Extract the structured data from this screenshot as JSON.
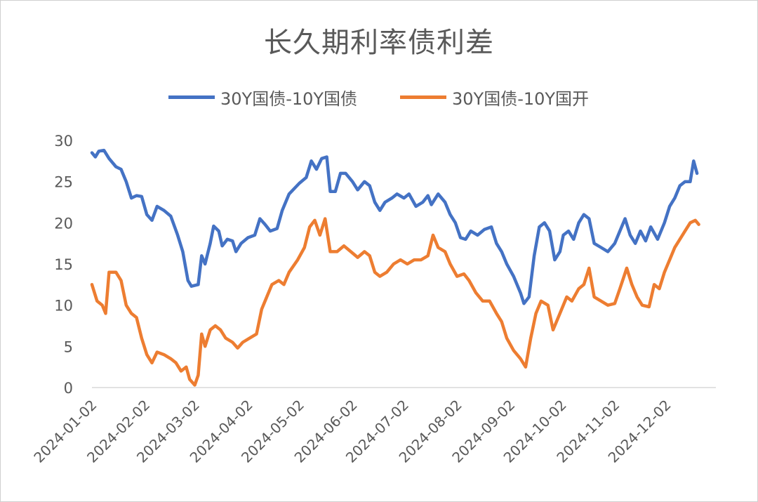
{
  "chart_data": {
    "type": "line",
    "title": "长久期利率债利差",
    "xlabel": "",
    "ylabel": "",
    "ylim": [
      0,
      30
    ],
    "yticks": [
      "0",
      "5",
      "10",
      "15",
      "20",
      "25",
      "30"
    ],
    "x_start": "2024-01-02",
    "x_end": "2024-12-31",
    "xticks": [
      "2024-01-02",
      "2024-02-02",
      "2024-03-02",
      "2024-04-02",
      "2024-05-02",
      "2024-06-02",
      "2024-07-02",
      "2024-08-02",
      "2024-09-02",
      "2024-10-02",
      "2024-11-02",
      "2024-12-02"
    ],
    "grid": false,
    "legend_position": "top",
    "series": [
      {
        "name": "30Y国债-10Y国债",
        "color": "#4472C4",
        "points": [
          [
            "2024-01-02",
            28.5
          ],
          [
            "2024-01-04",
            28.0
          ],
          [
            "2024-01-06",
            28.7
          ],
          [
            "2024-01-09",
            28.8
          ],
          [
            "2024-01-12",
            27.8
          ],
          [
            "2024-01-16",
            26.8
          ],
          [
            "2024-01-19",
            26.5
          ],
          [
            "2024-01-22",
            25.0
          ],
          [
            "2024-01-25",
            23.0
          ],
          [
            "2024-01-28",
            23.3
          ],
          [
            "2024-01-31",
            23.2
          ],
          [
            "2024-02-03",
            21.0
          ],
          [
            "2024-02-06",
            20.3
          ],
          [
            "2024-02-09",
            22.0
          ],
          [
            "2024-02-13",
            21.5
          ],
          [
            "2024-02-17",
            20.8
          ],
          [
            "2024-02-21",
            18.5
          ],
          [
            "2024-02-24",
            16.5
          ],
          [
            "2024-02-27",
            13.0
          ],
          [
            "2024-02-29",
            12.3
          ],
          [
            "2024-03-04",
            12.5
          ],
          [
            "2024-03-06",
            16.0
          ],
          [
            "2024-03-08",
            15.0
          ],
          [
            "2024-03-11",
            17.5
          ],
          [
            "2024-03-13",
            19.6
          ],
          [
            "2024-03-16",
            19.0
          ],
          [
            "2024-03-18",
            17.2
          ],
          [
            "2024-03-21",
            18.0
          ],
          [
            "2024-03-24",
            17.8
          ],
          [
            "2024-03-26",
            16.5
          ],
          [
            "2024-03-29",
            17.5
          ],
          [
            "2024-04-02",
            18.2
          ],
          [
            "2024-04-06",
            18.5
          ],
          [
            "2024-04-09",
            20.5
          ],
          [
            "2024-04-12",
            19.8
          ],
          [
            "2024-04-15",
            19.0
          ],
          [
            "2024-04-19",
            19.3
          ],
          [
            "2024-04-22",
            21.5
          ],
          [
            "2024-04-26",
            23.5
          ],
          [
            "2024-05-02",
            24.8
          ],
          [
            "2024-05-06",
            25.5
          ],
          [
            "2024-05-09",
            27.5
          ],
          [
            "2024-05-12",
            26.5
          ],
          [
            "2024-05-15",
            27.8
          ],
          [
            "2024-05-18",
            28.0
          ],
          [
            "2024-05-20",
            23.8
          ],
          [
            "2024-05-23",
            23.8
          ],
          [
            "2024-05-26",
            26.0
          ],
          [
            "2024-05-29",
            26.0
          ],
          [
            "2024-06-02",
            25.0
          ],
          [
            "2024-06-05",
            24.0
          ],
          [
            "2024-06-09",
            25.0
          ],
          [
            "2024-06-12",
            24.5
          ],
          [
            "2024-06-15",
            22.5
          ],
          [
            "2024-06-18",
            21.5
          ],
          [
            "2024-06-21",
            22.5
          ],
          [
            "2024-06-25",
            23.0
          ],
          [
            "2024-06-28",
            23.5
          ],
          [
            "2024-07-02",
            23.0
          ],
          [
            "2024-07-05",
            23.5
          ],
          [
            "2024-07-09",
            22.0
          ],
          [
            "2024-07-13",
            22.5
          ],
          [
            "2024-07-16",
            23.3
          ],
          [
            "2024-07-18",
            22.2
          ],
          [
            "2024-07-22",
            23.5
          ],
          [
            "2024-07-26",
            22.5
          ],
          [
            "2024-07-29",
            21.0
          ],
          [
            "2024-08-01",
            20.0
          ],
          [
            "2024-08-04",
            18.2
          ],
          [
            "2024-08-07",
            18.0
          ],
          [
            "2024-08-10",
            19.0
          ],
          [
            "2024-08-14",
            18.5
          ],
          [
            "2024-08-18",
            19.2
          ],
          [
            "2024-08-22",
            19.5
          ],
          [
            "2024-08-25",
            17.5
          ],
          [
            "2024-08-28",
            16.5
          ],
          [
            "2024-08-31",
            15.0
          ],
          [
            "2024-09-04",
            13.5
          ],
          [
            "2024-09-08",
            11.5
          ],
          [
            "2024-09-10",
            10.2
          ],
          [
            "2024-09-13",
            11.0
          ],
          [
            "2024-09-16",
            16.0
          ],
          [
            "2024-09-19",
            19.5
          ],
          [
            "2024-09-22",
            20.0
          ],
          [
            "2024-09-25",
            19.0
          ],
          [
            "2024-09-28",
            15.5
          ],
          [
            "2024-10-01",
            16.5
          ],
          [
            "2024-10-03",
            18.5
          ],
          [
            "2024-10-06",
            19.0
          ],
          [
            "2024-10-09",
            18.0
          ],
          [
            "2024-10-12",
            20.0
          ],
          [
            "2024-10-15",
            21.0
          ],
          [
            "2024-10-18",
            20.5
          ],
          [
            "2024-10-21",
            17.5
          ],
          [
            "2024-10-25",
            17.0
          ],
          [
            "2024-10-29",
            16.5
          ],
          [
            "2024-11-02",
            17.5
          ],
          [
            "2024-11-05",
            19.0
          ],
          [
            "2024-11-08",
            20.5
          ],
          [
            "2024-11-11",
            18.5
          ],
          [
            "2024-11-14",
            17.5
          ],
          [
            "2024-11-17",
            19.0
          ],
          [
            "2024-11-20",
            17.8
          ],
          [
            "2024-11-23",
            19.5
          ],
          [
            "2024-11-27",
            18.0
          ],
          [
            "2024-12-01",
            20.0
          ],
          [
            "2024-12-04",
            22.0
          ],
          [
            "2024-12-07",
            23.0
          ],
          [
            "2024-12-10",
            24.5
          ],
          [
            "2024-12-13",
            25.0
          ],
          [
            "2024-12-16",
            25.0
          ],
          [
            "2024-12-18",
            27.5
          ],
          [
            "2024-12-20",
            26.0
          ]
        ]
      },
      {
        "name": "30Y国债-10Y国开",
        "color": "#ED7D31",
        "points": [
          [
            "2024-01-02",
            12.5
          ],
          [
            "2024-01-05",
            10.5
          ],
          [
            "2024-01-08",
            10.0
          ],
          [
            "2024-01-10",
            9.0
          ],
          [
            "2024-01-12",
            14.0
          ],
          [
            "2024-01-16",
            14.0
          ],
          [
            "2024-01-19",
            13.0
          ],
          [
            "2024-01-22",
            10.0
          ],
          [
            "2024-01-25",
            9.0
          ],
          [
            "2024-01-28",
            8.5
          ],
          [
            "2024-01-31",
            6.0
          ],
          [
            "2024-02-03",
            4.0
          ],
          [
            "2024-02-06",
            3.0
          ],
          [
            "2024-02-09",
            4.3
          ],
          [
            "2024-02-13",
            4.0
          ],
          [
            "2024-02-17",
            3.5
          ],
          [
            "2024-02-20",
            3.0
          ],
          [
            "2024-02-23",
            2.0
          ],
          [
            "2024-02-26",
            2.5
          ],
          [
            "2024-02-28",
            1.0
          ],
          [
            "2024-03-02",
            0.3
          ],
          [
            "2024-03-04",
            1.5
          ],
          [
            "2024-03-06",
            6.5
          ],
          [
            "2024-03-08",
            5.0
          ],
          [
            "2024-03-11",
            7.0
          ],
          [
            "2024-03-14",
            7.5
          ],
          [
            "2024-03-17",
            7.0
          ],
          [
            "2024-03-20",
            6.0
          ],
          [
            "2024-03-24",
            5.5
          ],
          [
            "2024-03-27",
            4.8
          ],
          [
            "2024-03-30",
            5.5
          ],
          [
            "2024-04-03",
            6.0
          ],
          [
            "2024-04-07",
            6.5
          ],
          [
            "2024-04-10",
            9.5
          ],
          [
            "2024-04-13",
            11.0
          ],
          [
            "2024-04-16",
            12.5
          ],
          [
            "2024-04-20",
            13.0
          ],
          [
            "2024-04-23",
            12.5
          ],
          [
            "2024-04-26",
            14.0
          ],
          [
            "2024-05-01",
            15.5
          ],
          [
            "2024-05-05",
            17.0
          ],
          [
            "2024-05-08",
            19.5
          ],
          [
            "2024-05-11",
            20.3
          ],
          [
            "2024-05-14",
            18.5
          ],
          [
            "2024-05-17",
            20.5
          ],
          [
            "2024-05-20",
            16.5
          ],
          [
            "2024-05-24",
            16.5
          ],
          [
            "2024-05-28",
            17.2
          ],
          [
            "2024-06-01",
            16.5
          ],
          [
            "2024-06-05",
            15.8
          ],
          [
            "2024-06-09",
            16.5
          ],
          [
            "2024-06-12",
            16.0
          ],
          [
            "2024-06-15",
            14.0
          ],
          [
            "2024-06-18",
            13.5
          ],
          [
            "2024-06-22",
            14.0
          ],
          [
            "2024-06-26",
            15.0
          ],
          [
            "2024-06-30",
            15.5
          ],
          [
            "2024-07-04",
            15.0
          ],
          [
            "2024-07-08",
            15.5
          ],
          [
            "2024-07-12",
            15.5
          ],
          [
            "2024-07-16",
            16.0
          ],
          [
            "2024-07-19",
            18.5
          ],
          [
            "2024-07-22",
            17.0
          ],
          [
            "2024-07-26",
            16.5
          ],
          [
            "2024-07-29",
            15.0
          ],
          [
            "2024-08-02",
            13.5
          ],
          [
            "2024-08-06",
            13.8
          ],
          [
            "2024-08-09",
            13.0
          ],
          [
            "2024-08-13",
            11.5
          ],
          [
            "2024-08-17",
            10.5
          ],
          [
            "2024-08-21",
            10.5
          ],
          [
            "2024-08-25",
            9.0
          ],
          [
            "2024-08-28",
            8.0
          ],
          [
            "2024-08-31",
            6.0
          ],
          [
            "2024-09-04",
            4.5
          ],
          [
            "2024-09-08",
            3.5
          ],
          [
            "2024-09-11",
            2.5
          ],
          [
            "2024-09-14",
            6.0
          ],
          [
            "2024-09-17",
            9.0
          ],
          [
            "2024-09-20",
            10.5
          ],
          [
            "2024-09-24",
            10.0
          ],
          [
            "2024-09-27",
            7.0
          ],
          [
            "2024-10-01",
            9.0
          ],
          [
            "2024-10-05",
            11.0
          ],
          [
            "2024-10-08",
            10.5
          ],
          [
            "2024-10-12",
            12.0
          ],
          [
            "2024-10-15",
            12.5
          ],
          [
            "2024-10-18",
            14.5
          ],
          [
            "2024-10-21",
            11.0
          ],
          [
            "2024-10-25",
            10.5
          ],
          [
            "2024-10-29",
            10.0
          ],
          [
            "2024-11-02",
            10.2
          ],
          [
            "2024-11-05",
            12.0
          ],
          [
            "2024-11-09",
            14.5
          ],
          [
            "2024-11-12",
            12.5
          ],
          [
            "2024-11-15",
            11.0
          ],
          [
            "2024-11-18",
            10.0
          ],
          [
            "2024-11-22",
            9.8
          ],
          [
            "2024-11-25",
            12.5
          ],
          [
            "2024-11-28",
            12.0
          ],
          [
            "2024-12-01",
            14.0
          ],
          [
            "2024-12-04",
            15.5
          ],
          [
            "2024-12-07",
            17.0
          ],
          [
            "2024-12-10",
            18.0
          ],
          [
            "2024-12-13",
            19.0
          ],
          [
            "2024-12-16",
            20.0
          ],
          [
            "2024-12-19",
            20.3
          ],
          [
            "2024-12-21",
            19.8
          ]
        ]
      }
    ]
  }
}
